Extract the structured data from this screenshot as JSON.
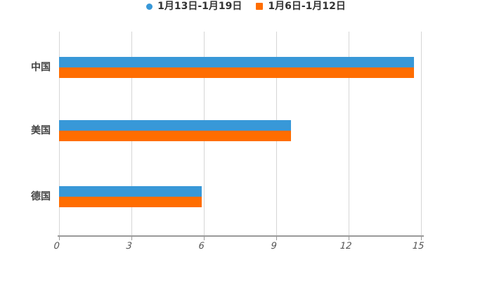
{
  "chart_data": {
    "type": "bar",
    "orientation": "horizontal",
    "title": "",
    "xlabel": "",
    "ylabel": "",
    "categories": [
      "中国",
      "美国",
      "德国"
    ],
    "series": [
      {
        "name": "1月13日-1月19日",
        "marker": "circle",
        "color": "#3898d8",
        "values": [
          14.7,
          9.6,
          5.9
        ]
      },
      {
        "name": "1月6日-1月12日",
        "marker": "square",
        "color": "#ff6d00",
        "values": [
          14.7,
          9.6,
          5.9
        ]
      }
    ],
    "x_ticks": [
      0,
      3,
      6,
      9,
      12,
      15
    ],
    "xlim": [
      0,
      15
    ],
    "grid": true,
    "legend_position": "top",
    "background": "#ffffff"
  },
  "colors": {
    "gridline": "#d6d6d6",
    "axis_line": "#9a9a9a",
    "tick_mark": "#9a9a9a",
    "tick_label": "#555555",
    "category_label": "#444444",
    "legend_text": "#333333"
  }
}
